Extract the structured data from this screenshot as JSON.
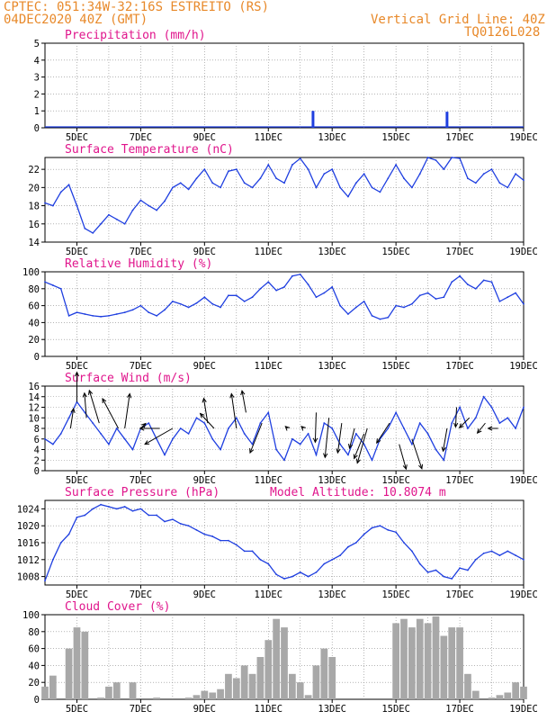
{
  "header": {
    "line1": "CPTEC:  051:34W-32:16S  ESTREITO (RS)",
    "line2": "04DEC2020 40Z (GMT)",
    "grid_note": "Vertical Grid Line: 40Z",
    "code": "TQ0126L028"
  },
  "colors": {
    "header": "#e8892a",
    "title": "#e0158c",
    "line": "#1f3fe0",
    "bar": "#a8a8a8",
    "arrow": "#000000"
  },
  "x_ticks": [
    "5DEC",
    "7DEC",
    "9DEC",
    "11DEC",
    "13DEC",
    "15DEC",
    "17DEC",
    "19DEC"
  ],
  "chart_data": [
    {
      "type": "bar",
      "title": "Precipitation (mm/h)",
      "ylim": [
        0,
        5
      ],
      "yticks": [
        "0",
        "1",
        "2",
        "3",
        "4",
        "5"
      ],
      "x": [
        12.4,
        16.6
      ],
      "values": [
        1.0,
        0.95
      ]
    },
    {
      "type": "line",
      "title": "Surface Temperature (nC)",
      "ylim": [
        14,
        23.3
      ],
      "yticks": [
        "14",
        "16",
        "18",
        "20",
        "22"
      ],
      "x": [
        4.0,
        4.25,
        4.5,
        4.75,
        5.0,
        5.25,
        5.5,
        5.75,
        6.0,
        6.25,
        6.5,
        6.75,
        7.0,
        7.25,
        7.5,
        7.75,
        8.0,
        8.25,
        8.5,
        8.75,
        9.0,
        9.25,
        9.5,
        9.75,
        10.0,
        10.25,
        10.5,
        10.75,
        11.0,
        11.25,
        11.5,
        11.75,
        12.0,
        12.25,
        12.5,
        12.75,
        13.0,
        13.25,
        13.5,
        13.75,
        14.0,
        14.25,
        14.5,
        14.75,
        15.0,
        15.25,
        15.5,
        15.75,
        16.0,
        16.25,
        16.5,
        16.75,
        17.0,
        17.25,
        17.5,
        17.75,
        18.0,
        18.25,
        18.5,
        18.75,
        19.0
      ],
      "values": [
        18.3,
        18.0,
        19.5,
        20.3,
        18.0,
        15.5,
        15.0,
        16.0,
        17.0,
        16.5,
        16.0,
        17.5,
        18.6,
        18.0,
        17.5,
        18.5,
        20.0,
        20.5,
        19.8,
        21.0,
        22.0,
        20.5,
        20.0,
        21.8,
        22.0,
        20.5,
        20.0,
        21.0,
        22.5,
        21.0,
        20.5,
        22.5,
        23.2,
        22.0,
        20.0,
        21.5,
        22.0,
        20.0,
        19.0,
        20.5,
        21.5,
        20.0,
        19.5,
        21.0,
        22.5,
        21.0,
        20.0,
        21.5,
        23.3,
        23.0,
        22.0,
        23.3,
        23.2,
        21.0,
        20.5,
        21.5,
        22.0,
        20.5,
        20.0,
        21.5,
        20.8
      ]
    },
    {
      "type": "line",
      "title": "Relative Humidity (%)",
      "ylim": [
        0,
        100
      ],
      "yticks": [
        "0",
        "20",
        "40",
        "60",
        "80",
        "100"
      ],
      "x": [
        4.0,
        4.25,
        4.5,
        4.75,
        5.0,
        5.25,
        5.5,
        5.75,
        6.0,
        6.25,
        6.5,
        6.75,
        7.0,
        7.25,
        7.5,
        7.75,
        8.0,
        8.25,
        8.5,
        8.75,
        9.0,
        9.25,
        9.5,
        9.75,
        10.0,
        10.25,
        10.5,
        10.75,
        11.0,
        11.25,
        11.5,
        11.75,
        12.0,
        12.25,
        12.5,
        12.75,
        13.0,
        13.25,
        13.5,
        13.75,
        14.0,
        14.25,
        14.5,
        14.75,
        15.0,
        15.25,
        15.5,
        15.75,
        16.0,
        16.25,
        16.5,
        16.75,
        17.0,
        17.25,
        17.5,
        17.75,
        18.0,
        18.25,
        18.5,
        18.75,
        19.0
      ],
      "values": [
        88,
        84,
        80,
        48,
        52,
        50,
        48,
        47,
        48,
        50,
        52,
        55,
        60,
        52,
        48,
        55,
        65,
        62,
        58,
        63,
        70,
        62,
        58,
        72,
        72,
        65,
        70,
        80,
        88,
        78,
        82,
        95,
        97,
        85,
        70,
        75,
        82,
        60,
        50,
        58,
        65,
        48,
        44,
        46,
        60,
        58,
        62,
        72,
        75,
        68,
        70,
        88,
        95,
        85,
        80,
        90,
        88,
        65,
        70,
        75,
        62
      ]
    },
    {
      "type": "line",
      "title": "Surface Wind (m/s)",
      "ylim": [
        0,
        16
      ],
      "yticks": [
        "0",
        "2",
        "4",
        "6",
        "8",
        "10",
        "12",
        "14",
        "16"
      ],
      "x": [
        4.0,
        4.25,
        4.5,
        4.75,
        5.0,
        5.25,
        5.5,
        5.75,
        6.0,
        6.25,
        6.5,
        6.75,
        7.0,
        7.25,
        7.5,
        7.75,
        8.0,
        8.25,
        8.5,
        8.75,
        9.0,
        9.25,
        9.5,
        9.75,
        10.0,
        10.25,
        10.5,
        10.75,
        11.0,
        11.25,
        11.5,
        11.75,
        12.0,
        12.25,
        12.5,
        12.75,
        13.0,
        13.25,
        13.5,
        13.75,
        14.0,
        14.25,
        14.5,
        14.75,
        15.0,
        15.25,
        15.5,
        15.75,
        16.0,
        16.25,
        16.5,
        16.75,
        17.0,
        17.25,
        17.5,
        17.75,
        18.0,
        18.25,
        18.5,
        18.75,
        19.0
      ],
      "values": [
        6,
        5,
        7,
        10,
        13,
        11,
        9,
        7,
        5,
        8,
        6,
        4,
        8,
        9,
        6,
        3,
        6,
        8,
        7,
        10,
        9,
        6,
        4,
        8,
        10,
        7,
        5,
        9,
        11,
        4,
        2,
        6,
        5,
        7,
        3,
        9,
        8,
        5,
        3,
        7,
        5,
        2,
        6,
        8,
        11,
        8,
        5,
        9,
        7,
        4,
        2,
        9,
        12,
        8,
        10,
        14,
        12,
        9,
        10,
        8,
        12
      ]
    },
    {
      "type": "line",
      "title": "Surface Pressure (hPa)",
      "annotation": "Model Altitude: 10.8074 m",
      "ylim": [
        1006,
        1026
      ],
      "yticks": [
        "1008",
        "1012",
        "1016",
        "1020",
        "1024"
      ],
      "x": [
        4.0,
        4.25,
        4.5,
        4.75,
        5.0,
        5.25,
        5.5,
        5.75,
        6.0,
        6.25,
        6.5,
        6.75,
        7.0,
        7.25,
        7.5,
        7.75,
        8.0,
        8.25,
        8.5,
        8.75,
        9.0,
        9.25,
        9.5,
        9.75,
        10.0,
        10.25,
        10.5,
        10.75,
        11.0,
        11.25,
        11.5,
        11.75,
        12.0,
        12.25,
        12.5,
        12.75,
        13.0,
        13.25,
        13.5,
        13.75,
        14.0,
        14.25,
        14.5,
        14.75,
        15.0,
        15.25,
        15.5,
        15.75,
        16.0,
        16.25,
        16.5,
        16.75,
        17.0,
        17.25,
        17.5,
        17.75,
        18.0,
        18.25,
        18.5,
        18.75,
        19.0
      ],
      "values": [
        1007,
        1012,
        1016,
        1018,
        1022,
        1022.5,
        1024,
        1025,
        1024.5,
        1024,
        1024.5,
        1023.5,
        1024,
        1022.5,
        1022.5,
        1021,
        1021.5,
        1020.5,
        1020,
        1019,
        1018,
        1017.5,
        1016.5,
        1016.5,
        1015.5,
        1014,
        1014,
        1012,
        1011,
        1008.5,
        1007.5,
        1008,
        1009,
        1008,
        1009,
        1011,
        1012,
        1013,
        1015,
        1016,
        1018,
        1019.5,
        1020,
        1019,
        1018.5,
        1016,
        1014,
        1011,
        1009,
        1009.5,
        1008,
        1007.5,
        1010,
        1009.5,
        1012,
        1013.5,
        1014,
        1013,
        1014,
        1013,
        1012
      ]
    },
    {
      "type": "bar",
      "title": "Cloud Cover (%)",
      "ylim": [
        0,
        100
      ],
      "yticks": [
        "0",
        "20",
        "40",
        "60",
        "80",
        "100"
      ],
      "x": [
        4.0,
        4.25,
        4.5,
        4.75,
        5.0,
        5.25,
        5.5,
        5.75,
        6.0,
        6.25,
        6.5,
        6.75,
        7.0,
        7.25,
        7.5,
        7.75,
        8.0,
        8.25,
        8.5,
        8.75,
        9.0,
        9.25,
        9.5,
        9.75,
        10.0,
        10.25,
        10.5,
        10.75,
        11.0,
        11.25,
        11.5,
        11.75,
        12.0,
        12.25,
        12.5,
        12.75,
        13.0,
        13.25,
        13.5,
        13.75,
        14.0,
        14.25,
        14.5,
        14.75,
        15.0,
        15.25,
        15.5,
        15.75,
        16.0,
        16.25,
        16.5,
        16.75,
        17.0,
        17.25,
        17.5,
        17.75,
        18.0,
        18.25,
        18.5,
        18.75,
        19.0
      ],
      "values": [
        15,
        28,
        0,
        60,
        85,
        80,
        0,
        2,
        15,
        20,
        0,
        20,
        0,
        0,
        2,
        0,
        0,
        0,
        2,
        5,
        10,
        8,
        12,
        30,
        25,
        40,
        30,
        50,
        70,
        95,
        85,
        30,
        20,
        5,
        40,
        60,
        50,
        0,
        0,
        0,
        0,
        0,
        0,
        0,
        90,
        95,
        85,
        95,
        90,
        98,
        75,
        85,
        85,
        30,
        10,
        0,
        2,
        5,
        8,
        20,
        15
      ]
    },
    {
      "type": "vector",
      "title": "Surface Wind arrows",
      "x": [
        4.8,
        5.0,
        5.3,
        5.7,
        6.3,
        6.5,
        7.0,
        7.6,
        8.0,
        9.1,
        9.3,
        10.0,
        10.3,
        10.8,
        11.6,
        12.1,
        12.5,
        12.9,
        13.3,
        13.7,
        14.0,
        14.1,
        14.8,
        15.1,
        15.5,
        16.6,
        16.9,
        17.3,
        17.8,
        18.2
      ],
      "y": [
        8,
        13,
        10,
        9,
        8,
        8,
        8,
        8,
        8,
        9,
        8,
        8,
        11,
        9,
        8,
        8,
        11,
        10,
        9,
        8,
        7,
        8,
        9,
        5,
        6,
        8,
        12,
        10,
        9,
        8
      ],
      "u": [
        0.3,
        0,
        -0.2,
        -1.0,
        -1.6,
        0.5,
        0.5,
        -2.0,
        -2.8,
        -0.4,
        -1.4,
        -0.5,
        -0.4,
        -1.2,
        -0.2,
        -0.2,
        -0.1,
        -0.4,
        -0.4,
        -0.5,
        -1.0,
        -1.0,
        -1.3,
        0.7,
        1.0,
        -0.4,
        -0.1,
        -1.0,
        -0.8,
        -1.0
      ],
      "v": [
        2.0,
        3.0,
        2.5,
        3.3,
        3.0,
        3.5,
        0.5,
        0,
        -1.6,
        2.5,
        1.5,
        3.5,
        2.2,
        -3.0,
        0.2,
        0.2,
        -3.0,
        -4.0,
        -3.0,
        -2.0,
        -2.5,
        -3.5,
        -2.0,
        -2.5,
        -3.0,
        -2.3,
        -2.0,
        -1.0,
        -1.0,
        0
      ]
    }
  ]
}
